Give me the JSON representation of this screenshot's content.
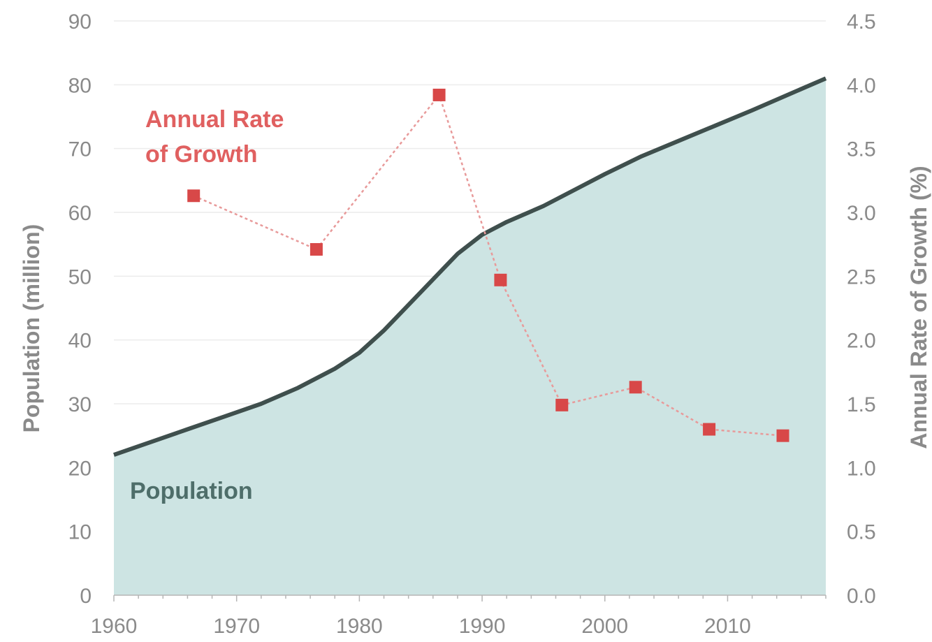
{
  "chart_data": {
    "type": "area",
    "x_ticks": [
      "1960",
      "1970",
      "1980",
      "1990",
      "2000",
      "2010"
    ],
    "xlim": [
      1960,
      2018
    ],
    "y_left": {
      "label": "Population (million)",
      "ticks": [
        "0",
        "10",
        "20",
        "30",
        "40",
        "50",
        "60",
        "70",
        "80",
        "90"
      ],
      "ylim": [
        0,
        90
      ]
    },
    "y_right": {
      "label": "Annual Rate of Growth (%)",
      "ticks": [
        "0.0",
        "0.5",
        "1.0",
        "1.5",
        "2.0",
        "2.5",
        "3.0",
        "3.5",
        "4.0",
        "4.5"
      ],
      "ylim": [
        0,
        4.5
      ]
    },
    "grid": true,
    "series": [
      {
        "name": "Population",
        "type": "area",
        "axis": "left",
        "x": [
          1960,
          1963,
          1966,
          1969,
          1972,
          1975,
          1978,
          1980,
          1982,
          1984,
          1986,
          1988,
          1990,
          1992,
          1995,
          1998,
          2000,
          2003,
          2006,
          2009,
          2012,
          2015,
          2018
        ],
        "values": [
          22,
          24,
          26,
          28,
          30,
          32.5,
          35.5,
          38,
          41.5,
          45.5,
          49.5,
          53.5,
          56.5,
          58.5,
          61,
          64,
          66,
          68.8,
          71.2,
          73.6,
          76,
          78.5,
          81
        ]
      },
      {
        "name": "Annual Rate of Growth",
        "type": "scatter-dashed",
        "axis": "right",
        "x": [
          1966.5,
          1976.5,
          1986.5,
          1991.5,
          1996.5,
          2002.5,
          2008.5,
          2014.5
        ],
        "values": [
          3.13,
          2.71,
          3.92,
          2.47,
          1.49,
          1.63,
          1.3,
          1.25
        ]
      }
    ],
    "annotations": {
      "rate_line1": "Annual Rate",
      "rate_line2": "of Growth",
      "population": "Population"
    },
    "colors": {
      "area_fill": "#cde4e3",
      "population_line": "#3f4f4d",
      "rate_marker": "#d84848",
      "rate_line": "#e89a9a",
      "grid": "#ececec",
      "tick_text": "#8a8a8a"
    }
  }
}
